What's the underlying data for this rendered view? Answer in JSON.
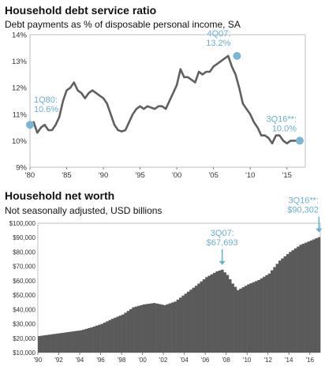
{
  "chart_data": [
    {
      "type": "line",
      "title": "Household debt service ratio",
      "subtitle": "Debt payments as % of disposable personal income, SA",
      "colors": {
        "line": "#606060",
        "marker": "#7ab6d6",
        "annotation": "#6aaed0"
      },
      "ylim": [
        9,
        14
      ],
      "yticks": [
        9,
        10,
        11,
        12,
        13,
        14
      ],
      "ytick_labels": [
        "9%",
        "10%",
        "11%",
        "12%",
        "13%",
        "14%"
      ],
      "xlim": [
        1980,
        2017.5
      ],
      "xticks": [
        1980,
        1985,
        1990,
        1995,
        2000,
        2005,
        2010,
        2015
      ],
      "xtick_labels": [
        "'80",
        "'85",
        "'90",
        "'95",
        "'00",
        "'05",
        "'10",
        "'15"
      ],
      "series": [
        {
          "x": [
            1980,
            1980.5,
            1981,
            1981.5,
            1982,
            1982.5,
            1983,
            1983.5,
            1984,
            1984.5,
            1985,
            1985.5,
            1986,
            1986.5,
            1987,
            1987.5,
            1988,
            1988.5,
            1989,
            1989.5,
            1990,
            1990.5,
            1991,
            1991.5,
            1992,
            1992.5,
            1993,
            1993.5,
            1994,
            1994.5,
            1995,
            1995.5,
            1996,
            1996.5,
            1997,
            1997.5,
            1998,
            1998.5,
            1999,
            1999.5,
            2000,
            2000.5,
            2001,
            2001.5,
            2002,
            2002.5,
            2003,
            2003.5,
            2004,
            2004.5,
            2005,
            2005.5,
            2006,
            2006.5,
            2007,
            2007.5,
            2008,
            2008.5,
            2009,
            2009.5,
            2010,
            2010.5,
            2011,
            2011.5,
            2012,
            2012.5,
            2013,
            2013.5,
            2014,
            2014.5,
            2015,
            2015.5,
            2016,
            2016.75
          ],
          "values": [
            10.6,
            10.7,
            10.3,
            10.5,
            10.6,
            10.4,
            10.4,
            10.6,
            10.9,
            11.5,
            11.9,
            12.0,
            12.2,
            11.9,
            11.8,
            11.6,
            11.8,
            11.9,
            11.8,
            11.7,
            11.6,
            11.4,
            11.0,
            10.6,
            10.4,
            10.35,
            10.4,
            10.7,
            11.0,
            11.2,
            11.3,
            11.2,
            11.3,
            11.25,
            11.2,
            11.3,
            11.3,
            11.2,
            11.5,
            11.8,
            12.1,
            12.7,
            12.4,
            12.4,
            12.3,
            12.2,
            12.6,
            12.5,
            12.6,
            12.6,
            12.8,
            12.9,
            13.0,
            13.1,
            13.2,
            12.8,
            12.5,
            12.0,
            11.4,
            11.2,
            11.0,
            10.7,
            10.5,
            10.2,
            10.2,
            10.1,
            9.9,
            10.2,
            10.2,
            10.0,
            9.9,
            10.0,
            10.0,
            10.0
          ]
        }
      ],
      "annotations": [
        {
          "line1": "1Q80:",
          "line2": "10.6%",
          "x": 1980,
          "y": 10.6
        },
        {
          "line1": "4Q07:",
          "line2": "13.2%",
          "x": 2008.2,
          "y": 13.2
        },
        {
          "line1": "3Q16**:",
          "line2": "10.0%",
          "x": 2016.75,
          "y": 10.0
        }
      ]
    },
    {
      "type": "bar",
      "title": "Household net worth",
      "subtitle": "Not seasonally adjusted, USD billions",
      "colors": {
        "bars": "#5a5a5a",
        "annotation": "#6aaed0"
      },
      "ylim": [
        10000,
        100000
      ],
      "yticks": [
        10000,
        20000,
        30000,
        40000,
        50000,
        60000,
        70000,
        80000,
        90000,
        100000
      ],
      "ytick_labels": [
        "$10,000",
        "$20,000",
        "$30,000",
        "$40,000",
        "$50,000",
        "$60,000",
        "$70,000",
        "$80,000",
        "$90,000",
        "$100,000"
      ],
      "xlim": [
        1990,
        2017
      ],
      "xticks": [
        1990,
        1992,
        1994,
        1996,
        1998,
        2000,
        2002,
        2004,
        2006,
        2008,
        2010,
        2012,
        2014,
        2016
      ],
      "xtick_labels": [
        "'90",
        "'92",
        "'94",
        "'96",
        "'98",
        "'00",
        "'02",
        "'04",
        "'06",
        "'08",
        "'10",
        "'12",
        "'14",
        "'16"
      ],
      "series": [
        {
          "x": [
            1990,
            1991,
            1992,
            1993,
            1994,
            1995,
            1996,
            1997,
            1998,
            1999,
            2000,
            2001,
            2002,
            2003,
            2004,
            2005,
            2006,
            2007,
            2007.5,
            2008,
            2008.5,
            2009,
            2010,
            2011,
            2012,
            2013,
            2014,
            2015,
            2016,
            2016.75
          ],
          "values": [
            21500,
            22500,
            23500,
            24500,
            25500,
            27500,
            30000,
            33500,
            36500,
            41500,
            43500,
            44500,
            43000,
            45500,
            51000,
            56500,
            62500,
            66500,
            67693,
            64000,
            58000,
            53500,
            57500,
            60500,
            65000,
            74000,
            80000,
            85000,
            88000,
            90302
          ]
        }
      ],
      "annotations": [
        {
          "line1": "3Q07:",
          "line2": "$67,693",
          "x": 2007.5,
          "y": 67693
        },
        {
          "line1": "3Q16**:",
          "line2": "$90,302",
          "x": 2016.75,
          "y": 90302
        }
      ]
    }
  ]
}
